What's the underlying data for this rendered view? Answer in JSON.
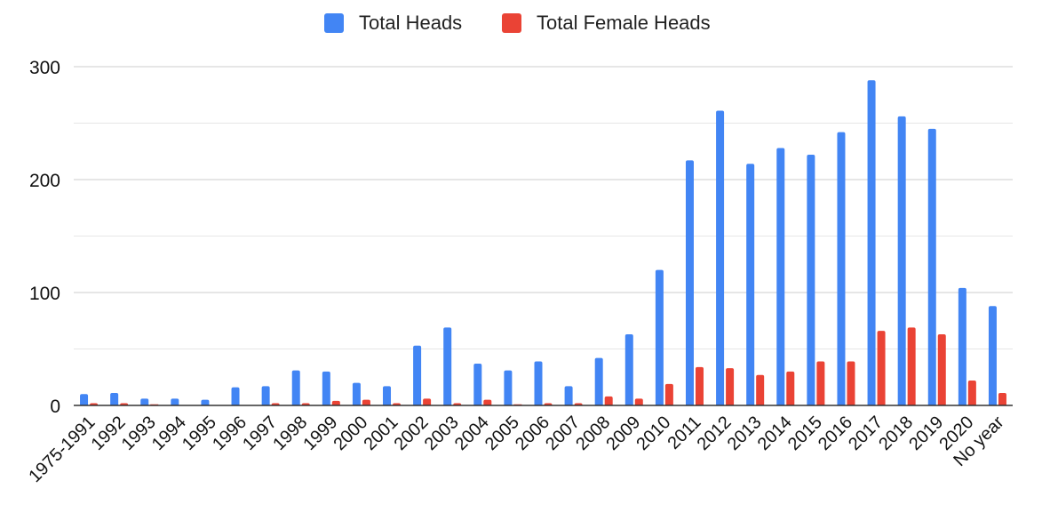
{
  "chart_data": {
    "type": "bar",
    "legend_position": "top-center",
    "grid": true,
    "title": "",
    "xlabel": "",
    "ylabel": "",
    "ylim": [
      0,
      300
    ],
    "yticks": [
      0,
      100,
      200,
      300
    ],
    "categories": [
      "1975-1991",
      "1992",
      "1993",
      "1994",
      "1995",
      "1996",
      "1997",
      "1998",
      "1999",
      "2000",
      "2001",
      "2002",
      "2003",
      "2004",
      "2005",
      "2006",
      "2007",
      "2008",
      "2009",
      "2010",
      "2011",
      "2012",
      "2013",
      "2014",
      "2015",
      "2016",
      "2017",
      "2018",
      "2019",
      "2020",
      "No year"
    ],
    "series": [
      {
        "name": "Total Heads",
        "color": "#4285f4",
        "values": [
          10,
          11,
          6,
          6,
          5,
          16,
          17,
          31,
          30,
          20,
          17,
          53,
          69,
          37,
          31,
          39,
          17,
          42,
          63,
          120,
          217,
          261,
          214,
          228,
          222,
          242,
          288,
          256,
          245,
          104,
          88
        ]
      },
      {
        "name": "Total Female Heads",
        "color": "#ea4335",
        "values": [
          2,
          2,
          1,
          0,
          0,
          0,
          2,
          2,
          4,
          5,
          2,
          6,
          2,
          5,
          1,
          2,
          2,
          8,
          6,
          19,
          34,
          33,
          27,
          30,
          39,
          39,
          66,
          69,
          63,
          22,
          11
        ]
      }
    ]
  }
}
